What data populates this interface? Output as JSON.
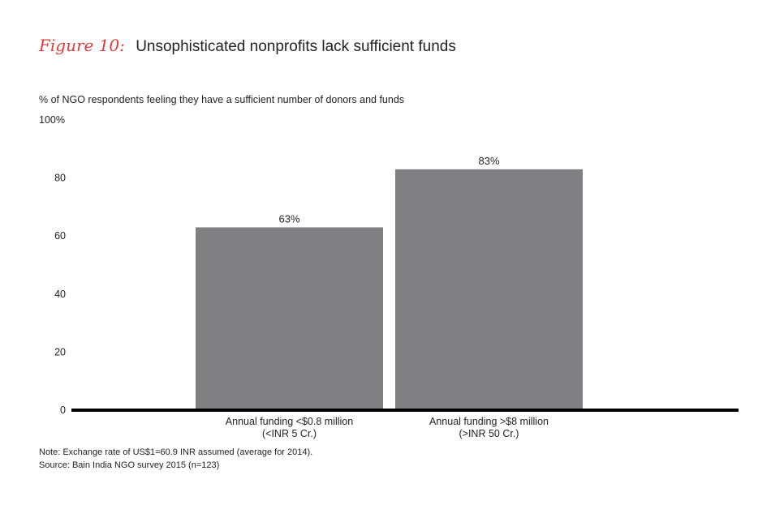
{
  "figure_label": "Figure 10:",
  "figure_title": "Unsophisticated nonprofits lack sufficient funds",
  "subtitle": "% of NGO respondents feeling they have a sufficient number of donors and funds",
  "note": "Note: Exchange rate of US$1=60.9 INR assumed (average for 2014).",
  "source": "Source: Bain India NGO survey 2015 (n=123)",
  "colors": {
    "bar": "#808083",
    "axis": "#000000",
    "title_accent": "#e03a3a"
  },
  "chart_data": {
    "type": "bar",
    "title": "",
    "ylabel": "",
    "xlabel": "",
    "ylim": [
      0,
      100
    ],
    "y_ticks": [
      "0",
      "20",
      "40",
      "60",
      "80",
      "100%"
    ],
    "y_tick_values": [
      0,
      20,
      40,
      60,
      80,
      100
    ],
    "categories": [
      [
        "Annual funding <$0.8 million",
        "(<INR 5 Cr.)"
      ],
      [
        "Annual funding >$8 million",
        "(>INR 50 Cr.)"
      ]
    ],
    "values": [
      63,
      83
    ],
    "data_labels": [
      "63%",
      "83%"
    ]
  }
}
